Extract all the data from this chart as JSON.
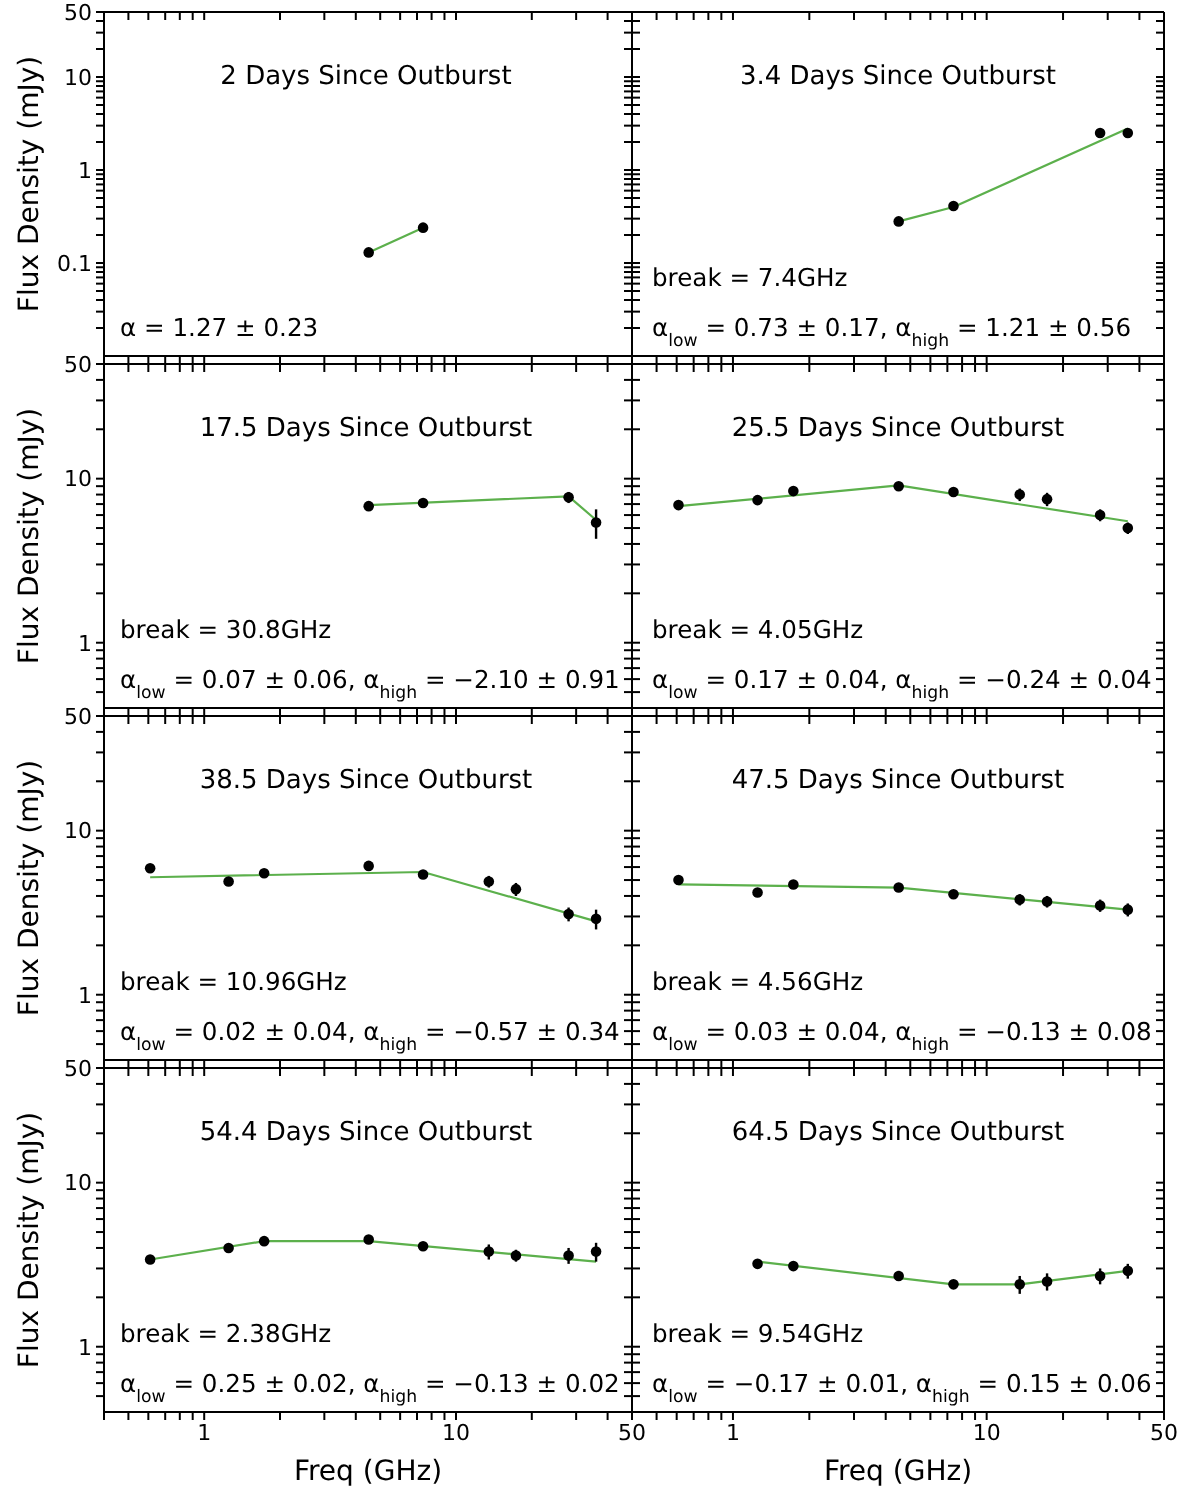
{
  "chart_data": [
    {
      "type": "scatter",
      "title": "2 Days Since Outburst",
      "ylabel": "Flux Density (mJy)",
      "annotations": [
        "α = 1.27 ± 0.23"
      ],
      "log": "xy",
      "xlim": [
        0.4,
        50
      ],
      "ylim": [
        0.01,
        50
      ],
      "tick_labels": "y",
      "xticks": [
        {
          "value": 0.4,
          "label": null
        },
        {
          "value": 0.5,
          "label": null
        },
        {
          "value": 0.6,
          "label": null
        },
        {
          "value": 0.7,
          "label": null
        },
        {
          "value": 0.8,
          "label": null
        },
        {
          "value": 0.9,
          "label": null
        },
        1,
        {
          "value": 2,
          "label": null
        },
        {
          "value": 3,
          "label": null
        },
        {
          "value": 4,
          "label": null
        },
        {
          "value": 5,
          "label": null
        },
        {
          "value": 6,
          "label": null
        },
        {
          "value": 7,
          "label": null
        },
        {
          "value": 8,
          "label": null
        },
        {
          "value": 9,
          "label": null
        },
        10,
        {
          "value": 20,
          "label": null
        },
        {
          "value": 30,
          "label": null
        },
        {
          "value": 40,
          "label": null
        },
        50
      ],
      "yticks": [
        {
          "value": 0.02,
          "label": null
        },
        {
          "value": 0.03,
          "label": null
        },
        {
          "value": 0.04,
          "label": null
        },
        {
          "value": 0.05,
          "label": null
        },
        {
          "value": 0.06,
          "label": null
        },
        {
          "value": 0.07,
          "label": null
        },
        {
          "value": 0.08,
          "label": null
        },
        {
          "value": 0.09,
          "label": null
        },
        0.1,
        {
          "value": 0.2,
          "label": null
        },
        {
          "value": 0.3,
          "label": null
        },
        {
          "value": 0.4,
          "label": null
        },
        {
          "value": 0.5,
          "label": null
        },
        {
          "value": 0.6,
          "label": null
        },
        {
          "value": 0.7,
          "label": null
        },
        {
          "value": 0.8,
          "label": null
        },
        {
          "value": 0.9,
          "label": null
        },
        1,
        {
          "value": 2,
          "label": null
        },
        {
          "value": 3,
          "label": null
        },
        {
          "value": 4,
          "label": null
        },
        {
          "value": 5,
          "label": null
        },
        {
          "value": 6,
          "label": null
        },
        {
          "value": 7,
          "label": null
        },
        {
          "value": 8,
          "label": null
        },
        {
          "value": 9,
          "label": null
        },
        10,
        {
          "value": 20,
          "label": null
        },
        {
          "value": 30,
          "label": null
        },
        {
          "value": 40,
          "label": null
        },
        50
      ],
      "series": [
        {
          "type": "scatter",
          "color": "#000000",
          "marker": "circle",
          "x": [
            4.5,
            7.4
          ],
          "values": [
            0.13,
            0.24
          ]
        },
        {
          "type": "line",
          "color": "#5cb04c",
          "marker": "none",
          "x": [
            4.5,
            7.4
          ],
          "values": [
            0.13,
            0.24
          ]
        }
      ]
    },
    {
      "type": "scatter",
      "title": "3.4 Days Since Outburst",
      "annotations": [
        "break = 7.4GHz",
        "α$_{low}$ = 0.73 ± 0.17, α$_{high}$ = 1.21 ± 0.56"
      ],
      "log": "xy",
      "xlim": [
        0.4,
        50
      ],
      "ylim": [
        0.01,
        50
      ],
      "tick_labels": false,
      "xticks": [
        {
          "value": 0.4,
          "label": null
        },
        {
          "value": 0.5,
          "label": null
        },
        {
          "value": 0.6,
          "label": null
        },
        {
          "value": 0.7,
          "label": null
        },
        {
          "value": 0.8,
          "label": null
        },
        {
          "value": 0.9,
          "label": null
        },
        1,
        {
          "value": 2,
          "label": null
        },
        {
          "value": 3,
          "label": null
        },
        {
          "value": 4,
          "label": null
        },
        {
          "value": 5,
          "label": null
        },
        {
          "value": 6,
          "label": null
        },
        {
          "value": 7,
          "label": null
        },
        {
          "value": 8,
          "label": null
        },
        {
          "value": 9,
          "label": null
        },
        10,
        {
          "value": 20,
          "label": null
        },
        {
          "value": 30,
          "label": null
        },
        {
          "value": 40,
          "label": null
        },
        50
      ],
      "yticks": [
        {
          "value": 0.02,
          "label": null
        },
        {
          "value": 0.03,
          "label": null
        },
        {
          "value": 0.04,
          "label": null
        },
        {
          "value": 0.05,
          "label": null
        },
        {
          "value": 0.06,
          "label": null
        },
        {
          "value": 0.07,
          "label": null
        },
        {
          "value": 0.08,
          "label": null
        },
        {
          "value": 0.09,
          "label": null
        },
        0.1,
        {
          "value": 0.2,
          "label": null
        },
        {
          "value": 0.3,
          "label": null
        },
        {
          "value": 0.4,
          "label": null
        },
        {
          "value": 0.5,
          "label": null
        },
        {
          "value": 0.6,
          "label": null
        },
        {
          "value": 0.7,
          "label": null
        },
        {
          "value": 0.8,
          "label": null
        },
        {
          "value": 0.9,
          "label": null
        },
        1,
        {
          "value": 2,
          "label": null
        },
        {
          "value": 3,
          "label": null
        },
        {
          "value": 4,
          "label": null
        },
        {
          "value": 5,
          "label": null
        },
        {
          "value": 6,
          "label": null
        },
        {
          "value": 7,
          "label": null
        },
        {
          "value": 8,
          "label": null
        },
        {
          "value": 9,
          "label": null
        },
        10,
        {
          "value": 20,
          "label": null
        },
        {
          "value": 30,
          "label": null
        },
        {
          "value": 40,
          "label": null
        },
        50
      ],
      "series": [
        {
          "type": "scatter",
          "color": "#000000",
          "marker": "circle",
          "x": [
            4.5,
            7.4,
            28,
            36
          ],
          "values": [
            0.28,
            0.41,
            2.5,
            2.5
          ]
        },
        {
          "type": "line",
          "color": "#5cb04c",
          "marker": "none",
          "x": [
            4.5,
            7.4,
            36
          ],
          "values": [
            0.28,
            0.4,
            2.8
          ]
        }
      ]
    },
    {
      "type": "scatter",
      "title": "17.5 Days Since Outburst",
      "ylabel": "Flux Density (mJy)",
      "annotations": [
        "break = 30.8GHz",
        "α$_{low}$ = 0.07 ± 0.06, α$_{high}$ = −2.10 ± 0.91"
      ],
      "log": "xy",
      "xlim": [
        0.4,
        50
      ],
      "ylim": [
        0.4,
        50
      ],
      "tick_labels": "y",
      "xticks": [
        {
          "value": 0.4,
          "label": null
        },
        {
          "value": 0.5,
          "label": null
        },
        {
          "value": 0.6,
          "label": null
        },
        {
          "value": 0.7,
          "label": null
        },
        {
          "value": 0.8,
          "label": null
        },
        {
          "value": 0.9,
          "label": null
        },
        1,
        {
          "value": 2,
          "label": null
        },
        {
          "value": 3,
          "label": null
        },
        {
          "value": 4,
          "label": null
        },
        {
          "value": 5,
          "label": null
        },
        {
          "value": 6,
          "label": null
        },
        {
          "value": 7,
          "label": null
        },
        {
          "value": 8,
          "label": null
        },
        {
          "value": 9,
          "label": null
        },
        10,
        {
          "value": 20,
          "label": null
        },
        {
          "value": 30,
          "label": null
        },
        {
          "value": 40,
          "label": null
        },
        50
      ],
      "yticks": [
        {
          "value": 0.5,
          "label": null
        },
        {
          "value": 0.6,
          "label": null
        },
        {
          "value": 0.7,
          "label": null
        },
        {
          "value": 0.8,
          "label": null
        },
        {
          "value": 0.9,
          "label": null
        },
        1,
        {
          "value": 2,
          "label": null
        },
        {
          "value": 3,
          "label": null
        },
        {
          "value": 4,
          "label": null
        },
        {
          "value": 5,
          "label": null
        },
        {
          "value": 6,
          "label": null
        },
        {
          "value": 7,
          "label": null
        },
        {
          "value": 8,
          "label": null
        },
        {
          "value": 9,
          "label": null
        },
        10,
        {
          "value": 20,
          "label": null
        },
        {
          "value": 30,
          "label": null
        },
        {
          "value": 40,
          "label": null
        },
        50
      ],
      "series": [
        {
          "type": "scatter",
          "color": "#000000",
          "marker": "circle",
          "x": [
            4.5,
            7.4,
            28,
            36
          ],
          "values": [
            6.8,
            7.1,
            7.7,
            5.4
          ],
          "errors": [
            null,
            null,
            0.6,
            1.1
          ]
        },
        {
          "type": "line",
          "color": "#5cb04c",
          "marker": "none",
          "x": [
            4.5,
            28,
            36
          ],
          "values": [
            6.9,
            7.8,
            5.6
          ]
        }
      ]
    },
    {
      "type": "scatter",
      "title": "25.5 Days Since Outburst",
      "annotations": [
        "break = 4.05GHz",
        "α$_{low}$ = 0.17 ± 0.04, α$_{high}$ = −0.24 ± 0.04"
      ],
      "log": "xy",
      "xlim": [
        0.4,
        50
      ],
      "ylim": [
        0.4,
        50
      ],
      "tick_labels": false,
      "xticks": [
        {
          "value": 0.4,
          "label": null
        },
        {
          "value": 0.5,
          "label": null
        },
        {
          "value": 0.6,
          "label": null
        },
        {
          "value": 0.7,
          "label": null
        },
        {
          "value": 0.8,
          "label": null
        },
        {
          "value": 0.9,
          "label": null
        },
        1,
        {
          "value": 2,
          "label": null
        },
        {
          "value": 3,
          "label": null
        },
        {
          "value": 4,
          "label": null
        },
        {
          "value": 5,
          "label": null
        },
        {
          "value": 6,
          "label": null
        },
        {
          "value": 7,
          "label": null
        },
        {
          "value": 8,
          "label": null
        },
        {
          "value": 9,
          "label": null
        },
        10,
        {
          "value": 20,
          "label": null
        },
        {
          "value": 30,
          "label": null
        },
        {
          "value": 40,
          "label": null
        },
        50
      ],
      "yticks": [
        {
          "value": 0.5,
          "label": null
        },
        {
          "value": 0.6,
          "label": null
        },
        {
          "value": 0.7,
          "label": null
        },
        {
          "value": 0.8,
          "label": null
        },
        {
          "value": 0.9,
          "label": null
        },
        1,
        {
          "value": 2,
          "label": null
        },
        {
          "value": 3,
          "label": null
        },
        {
          "value": 4,
          "label": null
        },
        {
          "value": 5,
          "label": null
        },
        {
          "value": 6,
          "label": null
        },
        {
          "value": 7,
          "label": null
        },
        {
          "value": 8,
          "label": null
        },
        {
          "value": 9,
          "label": null
        },
        10,
        {
          "value": 20,
          "label": null
        },
        {
          "value": 30,
          "label": null
        },
        {
          "value": 40,
          "label": null
        },
        50
      ],
      "series": [
        {
          "type": "scatter",
          "color": "#000000",
          "marker": "circle",
          "x": [
            0.61,
            1.25,
            1.73,
            4.5,
            7.4,
            13.5,
            17.3,
            28,
            36
          ],
          "values": [
            6.9,
            7.4,
            8.4,
            9.0,
            8.3,
            8.0,
            7.5,
            6.0,
            5.0
          ],
          "errors": [
            null,
            0.4,
            null,
            null,
            null,
            0.7,
            0.7,
            0.5,
            0.4
          ]
        },
        {
          "type": "line",
          "color": "#5cb04c",
          "marker": "none",
          "x": [
            0.61,
            4.5,
            36
          ],
          "values": [
            6.8,
            9.1,
            5.5
          ]
        }
      ]
    },
    {
      "type": "scatter",
      "title": "38.5 Days Since Outburst",
      "ylabel": "Flux Density (mJy)",
      "annotations": [
        "break = 10.96GHz",
        "α$_{low}$ = 0.02 ± 0.04, α$_{high}$ = −0.57 ± 0.34"
      ],
      "log": "xy",
      "xlim": [
        0.4,
        50
      ],
      "ylim": [
        0.4,
        50
      ],
      "tick_labels": "y",
      "xticks": [
        {
          "value": 0.4,
          "label": null
        },
        {
          "value": 0.5,
          "label": null
        },
        {
          "value": 0.6,
          "label": null
        },
        {
          "value": 0.7,
          "label": null
        },
        {
          "value": 0.8,
          "label": null
        },
        {
          "value": 0.9,
          "label": null
        },
        1,
        {
          "value": 2,
          "label": null
        },
        {
          "value": 3,
          "label": null
        },
        {
          "value": 4,
          "label": null
        },
        {
          "value": 5,
          "label": null
        },
        {
          "value": 6,
          "label": null
        },
        {
          "value": 7,
          "label": null
        },
        {
          "value": 8,
          "label": null
        },
        {
          "value": 9,
          "label": null
        },
        10,
        {
          "value": 20,
          "label": null
        },
        {
          "value": 30,
          "label": null
        },
        {
          "value": 40,
          "label": null
        },
        50
      ],
      "yticks": [
        {
          "value": 0.5,
          "label": null
        },
        {
          "value": 0.6,
          "label": null
        },
        {
          "value": 0.7,
          "label": null
        },
        {
          "value": 0.8,
          "label": null
        },
        {
          "value": 0.9,
          "label": null
        },
        1,
        {
          "value": 2,
          "label": null
        },
        {
          "value": 3,
          "label": null
        },
        {
          "value": 4,
          "label": null
        },
        {
          "value": 5,
          "label": null
        },
        {
          "value": 6,
          "label": null
        },
        {
          "value": 7,
          "label": null
        },
        {
          "value": 8,
          "label": null
        },
        {
          "value": 9,
          "label": null
        },
        10,
        {
          "value": 20,
          "label": null
        },
        {
          "value": 30,
          "label": null
        },
        {
          "value": 40,
          "label": null
        },
        50
      ],
      "series": [
        {
          "type": "scatter",
          "color": "#000000",
          "marker": "circle",
          "x": [
            0.61,
            1.25,
            1.73,
            4.5,
            7.4,
            13.5,
            17.3,
            28,
            36
          ],
          "values": [
            5.9,
            4.9,
            5.5,
            6.1,
            5.4,
            4.9,
            4.4,
            3.1,
            2.9
          ],
          "errors": [
            null,
            null,
            null,
            null,
            null,
            0.4,
            0.4,
            0.3,
            0.4
          ]
        },
        {
          "type": "line",
          "color": "#5cb04c",
          "marker": "none",
          "x": [
            0.61,
            7.4,
            36
          ],
          "values": [
            5.2,
            5.6,
            2.8
          ]
        }
      ]
    },
    {
      "type": "scatter",
      "title": "47.5 Days Since Outburst",
      "annotations": [
        "break = 4.56GHz",
        "α$_{low}$ = 0.03 ± 0.04, α$_{high}$ = −0.13 ± 0.08"
      ],
      "log": "xy",
      "xlim": [
        0.4,
        50
      ],
      "ylim": [
        0.4,
        50
      ],
      "tick_labels": false,
      "xticks": [
        {
          "value": 0.4,
          "label": null
        },
        {
          "value": 0.5,
          "label": null
        },
        {
          "value": 0.6,
          "label": null
        },
        {
          "value": 0.7,
          "label": null
        },
        {
          "value": 0.8,
          "label": null
        },
        {
          "value": 0.9,
          "label": null
        },
        1,
        {
          "value": 2,
          "label": null
        },
        {
          "value": 3,
          "label": null
        },
        {
          "value": 4,
          "label": null
        },
        {
          "value": 5,
          "label": null
        },
        {
          "value": 6,
          "label": null
        },
        {
          "value": 7,
          "label": null
        },
        {
          "value": 8,
          "label": null
        },
        {
          "value": 9,
          "label": null
        },
        10,
        {
          "value": 20,
          "label": null
        },
        {
          "value": 30,
          "label": null
        },
        {
          "value": 40,
          "label": null
        },
        50
      ],
      "yticks": [
        {
          "value": 0.5,
          "label": null
        },
        {
          "value": 0.6,
          "label": null
        },
        {
          "value": 0.7,
          "label": null
        },
        {
          "value": 0.8,
          "label": null
        },
        {
          "value": 0.9,
          "label": null
        },
        1,
        {
          "value": 2,
          "label": null
        },
        {
          "value": 3,
          "label": null
        },
        {
          "value": 4,
          "label": null
        },
        {
          "value": 5,
          "label": null
        },
        {
          "value": 6,
          "label": null
        },
        {
          "value": 7,
          "label": null
        },
        {
          "value": 8,
          "label": null
        },
        {
          "value": 9,
          "label": null
        },
        10,
        {
          "value": 20,
          "label": null
        },
        {
          "value": 30,
          "label": null
        },
        {
          "value": 40,
          "label": null
        },
        50
      ],
      "series": [
        {
          "type": "scatter",
          "color": "#000000",
          "marker": "circle",
          "x": [
            0.61,
            1.25,
            1.73,
            4.5,
            7.4,
            13.5,
            17.3,
            28,
            36
          ],
          "values": [
            5.0,
            4.2,
            4.7,
            4.5,
            4.1,
            3.8,
            3.7,
            3.5,
            3.3
          ],
          "errors": [
            null,
            null,
            null,
            null,
            null,
            0.3,
            0.3,
            0.3,
            0.3
          ]
        },
        {
          "type": "line",
          "color": "#5cb04c",
          "marker": "none",
          "x": [
            0.61,
            4.5,
            36
          ],
          "values": [
            4.7,
            4.5,
            3.3
          ]
        }
      ]
    },
    {
      "type": "scatter",
      "title": "54.4 Days Since Outburst",
      "xlabel": "Freq (GHz)",
      "ylabel": "Flux Density (mJy)",
      "annotations": [
        "break = 2.38GHz",
        "α$_{low}$ = 0.25 ± 0.02, α$_{high}$ = −0.13 ± 0.02"
      ],
      "log": "xy",
      "xlim": [
        0.4,
        50
      ],
      "ylim": [
        0.4,
        50
      ],
      "xticks": [
        {
          "value": 0.4,
          "label": null
        },
        {
          "value": 0.5,
          "label": null
        },
        {
          "value": 0.6,
          "label": null
        },
        {
          "value": 0.7,
          "label": null
        },
        {
          "value": 0.8,
          "label": null
        },
        {
          "value": 0.9,
          "label": null
        },
        1,
        {
          "value": 2,
          "label": null
        },
        {
          "value": 3,
          "label": null
        },
        {
          "value": 4,
          "label": null
        },
        {
          "value": 5,
          "label": null
        },
        {
          "value": 6,
          "label": null
        },
        {
          "value": 7,
          "label": null
        },
        {
          "value": 8,
          "label": null
        },
        {
          "value": 9,
          "label": null
        },
        10,
        {
          "value": 20,
          "label": null
        },
        {
          "value": 30,
          "label": null
        },
        {
          "value": 40,
          "label": null
        },
        50
      ],
      "yticks": [
        {
          "value": 0.5,
          "label": null
        },
        {
          "value": 0.6,
          "label": null
        },
        {
          "value": 0.7,
          "label": null
        },
        {
          "value": 0.8,
          "label": null
        },
        {
          "value": 0.9,
          "label": null
        },
        1,
        {
          "value": 2,
          "label": null
        },
        {
          "value": 3,
          "label": null
        },
        {
          "value": 4,
          "label": null
        },
        {
          "value": 5,
          "label": null
        },
        {
          "value": 6,
          "label": null
        },
        {
          "value": 7,
          "label": null
        },
        {
          "value": 8,
          "label": null
        },
        {
          "value": 9,
          "label": null
        },
        10,
        {
          "value": 20,
          "label": null
        },
        {
          "value": 30,
          "label": null
        },
        {
          "value": 40,
          "label": null
        },
        50
      ],
      "series": [
        {
          "type": "scatter",
          "color": "#000000",
          "marker": "circle",
          "x": [
            0.61,
            1.25,
            1.73,
            4.5,
            7.4,
            13.5,
            17.3,
            28,
            36
          ],
          "values": [
            3.4,
            4.0,
            4.4,
            4.5,
            4.1,
            3.8,
            3.6,
            3.6,
            3.8
          ],
          "errors": [
            null,
            null,
            null,
            null,
            null,
            0.4,
            0.3,
            0.4,
            0.5
          ]
        },
        {
          "type": "line",
          "color": "#5cb04c",
          "marker": "none",
          "x": [
            0.61,
            1.73,
            4.5,
            36
          ],
          "values": [
            3.4,
            4.4,
            4.4,
            3.3
          ]
        }
      ]
    },
    {
      "type": "scatter",
      "title": "64.5 Days Since Outburst",
      "xlabel": "Freq (GHz)",
      "annotations": [
        "break = 9.54GHz",
        "α$_{low}$ = −0.17 ± 0.01, α$_{high}$ = 0.15 ± 0.06"
      ],
      "log": "xy",
      "xlim": [
        0.4,
        50
      ],
      "ylim": [
        0.4,
        50
      ],
      "tick_labels": "x",
      "xticks": [
        {
          "value": 0.4,
          "label": null
        },
        {
          "value": 0.5,
          "label": null
        },
        {
          "value": 0.6,
          "label": null
        },
        {
          "value": 0.7,
          "label": null
        },
        {
          "value": 0.8,
          "label": null
        },
        {
          "value": 0.9,
          "label": null
        },
        1,
        {
          "value": 2,
          "label": null
        },
        {
          "value": 3,
          "label": null
        },
        {
          "value": 4,
          "label": null
        },
        {
          "value": 5,
          "label": null
        },
        {
          "value": 6,
          "label": null
        },
        {
          "value": 7,
          "label": null
        },
        {
          "value": 8,
          "label": null
        },
        {
          "value": 9,
          "label": null
        },
        10,
        {
          "value": 20,
          "label": null
        },
        {
          "value": 30,
          "label": null
        },
        {
          "value": 40,
          "label": null
        },
        50
      ],
      "yticks": [
        {
          "value": 0.5,
          "label": null
        },
        {
          "value": 0.6,
          "label": null
        },
        {
          "value": 0.7,
          "label": null
        },
        {
          "value": 0.8,
          "label": null
        },
        {
          "value": 0.9,
          "label": null
        },
        1,
        {
          "value": 2,
          "label": null
        },
        {
          "value": 3,
          "label": null
        },
        {
          "value": 4,
          "label": null
        },
        {
          "value": 5,
          "label": null
        },
        {
          "value": 6,
          "label": null
        },
        {
          "value": 7,
          "label": null
        },
        {
          "value": 8,
          "label": null
        },
        {
          "value": 9,
          "label": null
        },
        10,
        {
          "value": 20,
          "label": null
        },
        {
          "value": 30,
          "label": null
        },
        {
          "value": 40,
          "label": null
        },
        50
      ],
      "series": [
        {
          "type": "scatter",
          "color": "#000000",
          "marker": "circle",
          "x": [
            1.25,
            1.73,
            4.5,
            7.4,
            13.5,
            17.3,
            28,
            36
          ],
          "values": [
            3.2,
            3.1,
            2.7,
            2.4,
            2.4,
            2.5,
            2.7,
            2.9
          ],
          "errors": [
            null,
            null,
            null,
            null,
            0.3,
            0.3,
            0.3,
            0.3
          ]
        },
        {
          "type": "line",
          "color": "#5cb04c",
          "marker": "none",
          "x": [
            1.25,
            7.4,
            13.5,
            36
          ],
          "values": [
            3.3,
            2.4,
            2.4,
            2.9
          ]
        }
      ]
    }
  ]
}
